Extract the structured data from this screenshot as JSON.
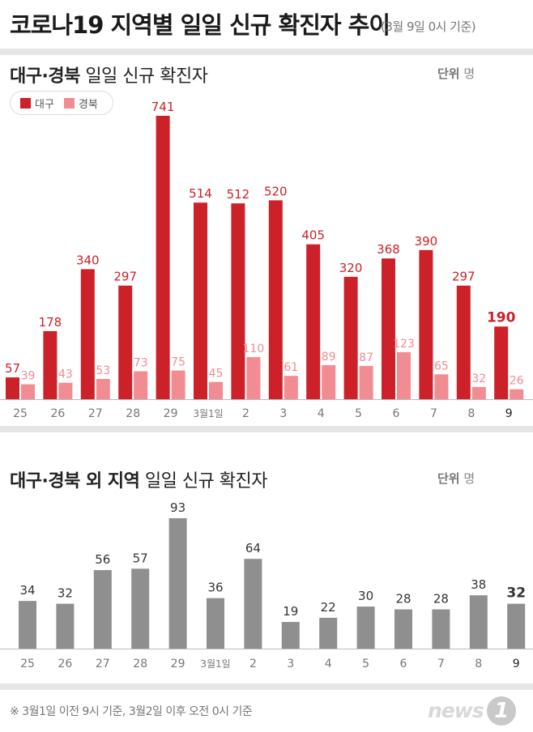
{
  "header": {
    "title": "코로나19 지역별 일일 신규 확진자 추이",
    "subtitle": "(3월 9일 0시 기준)"
  },
  "colors": {
    "daegu": "#cc2128",
    "gyeongbuk": "#f08c92",
    "other": "#8f8f8f",
    "band": "#e6e6e6"
  },
  "panel1": {
    "title_bold": "대구·경북",
    "title_rest": " 일일 신규 확진자",
    "unit_label": "단위",
    "unit_value": "명",
    "legend": [
      "대구",
      "경북"
    ]
  },
  "panel2": {
    "title_bold": "대구·경북 외 지역",
    "title_rest": " 일일 신규 확진자",
    "unit_label": "단위",
    "unit_value": "명"
  },
  "chart_data": [
    {
      "type": "bar",
      "categories": [
        "25",
        "26",
        "27",
        "28",
        "29",
        "3월1일",
        "2",
        "3",
        "4",
        "5",
        "6",
        "7",
        "8",
        "9"
      ],
      "series": [
        {
          "name": "대구",
          "values": [
            57,
            178,
            340,
            297,
            741,
            514,
            512,
            520,
            405,
            320,
            368,
            390,
            297,
            190
          ]
        },
        {
          "name": "경북",
          "values": [
            39,
            43,
            53,
            73,
            75,
            45,
            110,
            61,
            89,
            87,
            123,
            65,
            32,
            26
          ]
        }
      ],
      "highlight_last": true
    },
    {
      "type": "bar",
      "categories": [
        "25",
        "26",
        "27",
        "28",
        "29",
        "3월1일",
        "2",
        "3",
        "4",
        "5",
        "6",
        "7",
        "8",
        "9"
      ],
      "values": [
        34,
        32,
        56,
        57,
        93,
        36,
        64,
        19,
        22,
        30,
        28,
        28,
        38,
        32
      ],
      "highlight_last": true
    }
  ],
  "footnote": "※ 3월1일 이전 9시 기준, 3월2일 이후 오전 0시 기준",
  "logo": {
    "text": "news",
    "mark": "1"
  }
}
